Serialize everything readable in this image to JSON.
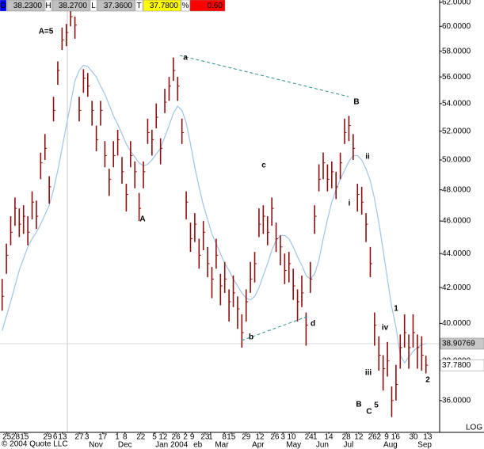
{
  "chart_data": {
    "type": "ohlc",
    "log": true,
    "bar_color": "#8b1010",
    "ma_color": "#9ec3e6",
    "ylim": [
      34.47,
      62.2
    ],
    "yticks": [
      {
        "value": 62,
        "label": "62.0000"
      },
      {
        "value": 60,
        "label": "60.0000"
      },
      {
        "value": 58,
        "label": "58.0000"
      },
      {
        "value": 56,
        "label": "56.0000"
      },
      {
        "value": 54,
        "label": "54.0000"
      },
      {
        "value": 52,
        "label": "52.0000"
      },
      {
        "value": 50,
        "label": "50.0000"
      },
      {
        "value": 48,
        "label": "48.0000"
      },
      {
        "value": 46,
        "label": "46.0000"
      },
      {
        "value": 44,
        "label": "44.0000"
      },
      {
        "value": 42,
        "label": "42.0000"
      },
      {
        "value": 40,
        "label": "40.0000"
      },
      {
        "value": 38,
        "label": "38.0000"
      },
      {
        "value": 36,
        "label": "36.0000"
      }
    ],
    "xlim": [
      -0.5,
      102.2
    ],
    "xticks": [
      {
        "value": 1.1,
        "label": "25"
      },
      {
        "value": 3.1,
        "label": "28"
      },
      {
        "value": 5.2,
        "label": "15"
      },
      {
        "value": 10.6,
        "label": "29"
      },
      {
        "value": 12.4,
        "label": "6"
      },
      {
        "value": 14.1,
        "label": "13"
      },
      {
        "value": 18,
        "label": "27"
      },
      {
        "value": 19.8,
        "label": "3"
      },
      {
        "value": 23.5,
        "label": "17"
      },
      {
        "value": 26.9,
        "label": "1"
      },
      {
        "value": 28.7,
        "label": "8"
      },
      {
        "value": 32.4,
        "label": "22"
      },
      {
        "value": 35.6,
        "label": "5"
      },
      {
        "value": 37.6,
        "label": "12"
      },
      {
        "value": 40.6,
        "label": "26"
      },
      {
        "value": 42.8,
        "label": "2"
      },
      {
        "value": 44.4,
        "label": "9"
      },
      {
        "value": 47.4,
        "label": "23"
      },
      {
        "value": 48.7,
        "label": "1"
      },
      {
        "value": 51.9,
        "label": "8"
      },
      {
        "value": 53.5,
        "label": "15"
      },
      {
        "value": 57,
        "label": "29"
      },
      {
        "value": 60.2,
        "label": "12"
      },
      {
        "value": 63.7,
        "label": "26"
      },
      {
        "value": 65.6,
        "label": "3"
      },
      {
        "value": 67.6,
        "label": "10"
      },
      {
        "value": 71.7,
        "label": "24"
      },
      {
        "value": 73.1,
        "label": "1"
      },
      {
        "value": 76.3,
        "label": "14"
      },
      {
        "value": 80.4,
        "label": "28"
      },
      {
        "value": 83.3,
        "label": "12"
      },
      {
        "value": 86.5,
        "label": "26"
      },
      {
        "value": 88,
        "label": "2"
      },
      {
        "value": 89.8,
        "label": "9"
      },
      {
        "value": 91.9,
        "label": "16"
      },
      {
        "value": 96.1,
        "label": "30"
      },
      {
        "value": 99.4,
        "label": "13"
      }
    ],
    "xmonths": [
      {
        "value": 21.9,
        "label": "Nov"
      },
      {
        "value": 28.7,
        "label": "Dec"
      },
      {
        "value": 39.6,
        "label": "Jan 2004"
      },
      {
        "value": 45.7,
        "label": "eb"
      },
      {
        "value": 51.3,
        "label": "Mar"
      },
      {
        "value": 59.8,
        "label": "Apr"
      },
      {
        "value": 68.1,
        "label": "May"
      },
      {
        "value": 74.8,
        "label": "Jun"
      },
      {
        "value": 80.9,
        "label": "Jul"
      },
      {
        "value": 90.7,
        "label": "Aug"
      },
      {
        "value": 98.7,
        "label": "Sep"
      }
    ],
    "high": [
      42.5,
      44.6,
      46.3,
      47.5,
      46.8,
      47,
      46.3,
      47.9,
      47.3,
      50.5,
      51.8,
      48.9,
      54.5,
      57.2,
      59.9,
      60.2,
      61.8,
      60.8,
      54.5,
      56.6,
      56.3,
      54.2,
      52.4,
      54.2,
      51.3,
      49.4,
      51.3,
      52.1,
      50.2,
      48.4,
      51.3,
      49.9,
      47.8,
      49.9,
      52.9,
      52.1,
      54,
      51.5,
      55.1,
      56,
      57.5,
      56,
      52.9,
      47.9,
      45.9,
      46.5,
      44.9,
      46,
      44.4,
      43.2,
      44.9,
      42.8,
      43.5,
      41.9,
      42.7,
      41.5,
      40.5,
      41.9,
      43.5,
      44.1,
      46.8,
      47,
      46.3,
      47.5,
      45.9,
      45.1,
      44,
      44.1,
      43.1,
      41.9,
      42.7,
      40.6,
      43.5,
      47,
      49.7,
      50.5,
      49.7,
      49.9,
      49.2,
      50.5,
      52.9,
      53.1,
      51.8,
      48.4,
      48.2,
      46.5,
      44.4,
      40.6,
      39.3,
      38.3,
      39,
      36.7,
      37.8,
      39.4,
      40.5,
      39.4,
      40.5,
      39.4,
      39.3,
      38.27
    ],
    "low": [
      40.7,
      42.8,
      44.5,
      45.7,
      45,
      45.2,
      44.5,
      46.1,
      45.5,
      48.7,
      50,
      47.1,
      52.7,
      55.4,
      58.1,
      58.4,
      60,
      59,
      52.7,
      54.8,
      54.5,
      52.4,
      50.6,
      52.4,
      49.5,
      47.6,
      49.5,
      50.3,
      48.4,
      46.6,
      49.5,
      48.1,
      46,
      48.1,
      51.1,
      50.3,
      52.2,
      49.7,
      53.3,
      54.2,
      55.7,
      54.2,
      51.1,
      46.1,
      44.1,
      44.7,
      43.1,
      44.2,
      42.6,
      41.4,
      43.1,
      41,
      41.7,
      40.1,
      40.9,
      39.7,
      38.7,
      40.1,
      41.7,
      42.3,
      45,
      45.2,
      44.5,
      45.7,
      44.1,
      43.3,
      42.2,
      42.3,
      41.3,
      40.1,
      40.9,
      38.8,
      41.7,
      45.2,
      47.9,
      48.7,
      47.9,
      48.1,
      47.4,
      48.7,
      51.1,
      51.3,
      50,
      46.6,
      46.4,
      44.7,
      42.6,
      38.8,
      37.5,
      36.5,
      37.2,
      35.2,
      36,
      37.6,
      38.7,
      37.6,
      38.7,
      37.6,
      37.5,
      37.36
    ],
    "close": [
      41.5,
      43.9,
      45.3,
      46.8,
      45.8,
      46.3,
      45.3,
      47.2,
      46.3,
      49.8,
      50.8,
      48.2,
      53.5,
      56.5,
      58.9,
      59.5,
      60.8,
      60.1,
      53.5,
      55.9,
      55.3,
      53.5,
      51.4,
      53.5,
      50.3,
      48.7,
      50.3,
      51.4,
      49.2,
      47.7,
      50.3,
      49.2,
      46.8,
      49.2,
      51.9,
      51.4,
      53,
      50.8,
      54.1,
      55.3,
      56.5,
      55.3,
      51.9,
      47.2,
      44.9,
      45.8,
      43.9,
      45.3,
      43.4,
      42.5,
      43.9,
      42.1,
      42.5,
      41.2,
      41.7,
      40.8,
      39.5,
      41.2,
      42.5,
      43.4,
      45.8,
      46.3,
      45.3,
      46.8,
      44.9,
      44.4,
      43,
      43.4,
      42.1,
      41.2,
      41.7,
      39.9,
      42.5,
      46.3,
      48.7,
      49.8,
      48.7,
      49.2,
      48.2,
      49.8,
      51.9,
      52.4,
      50.8,
      47.7,
      47.2,
      45.8,
      43.4,
      39.9,
      38.3,
      37.6,
      38,
      36,
      36.8,
      38.7,
      39.5,
      38.7,
      39.5,
      38.7,
      38.3,
      37.78
    ],
    "ma": [
      39.6,
      40.4,
      41.2,
      42.1,
      43,
      43.7,
      44.4,
      44.9,
      45.3,
      45.8,
      46.4,
      47,
      48,
      49.3,
      50.8,
      52.4,
      54,
      55.7,
      56.5,
      56.9,
      56.8,
      56.4,
      56,
      55.3,
      54.7,
      53.9,
      53.1,
      52.5,
      51.8,
      51.1,
      50.6,
      50.2,
      49.8,
      49.6,
      49.7,
      50,
      50.4,
      50.8,
      51.6,
      52.4,
      53.3,
      53.8,
      53.5,
      52.6,
      51.1,
      49.5,
      48.2,
      47,
      46.1,
      45.2,
      44.6,
      44,
      43.4,
      43,
      42.5,
      42.1,
      41.7,
      41.4,
      41.3,
      41.5,
      42,
      42.7,
      43.4,
      44.2,
      44.8,
      45.1,
      45.1,
      44.9,
      44.4,
      43.8,
      43.3,
      42.7,
      42.5,
      42.8,
      43.6,
      44.9,
      46.1,
      47.2,
      48,
      48.7,
      49.3,
      49.9,
      50.3,
      50.3,
      50,
      49.4,
      48.6,
      47.4,
      45.9,
      44.2,
      42.5,
      40.9,
      39.8,
      38.3,
      37.9,
      38.2,
      38.5,
      38.7,
      38.85,
      38.90769
    ],
    "price_flags": [
      38.90769,
      {
        "value": 37.78,
        "label": "37.7800"
      }
    ],
    "price_flag_colors": [
      "#c8c8c8",
      "#ffffff"
    ],
    "price_flag_text_colors": [
      "#ffffff",
      "#000000"
    ],
    "scale_label": "LOG",
    "copyright": "© 2004 Quote LLC",
    "quote": [
      {
        "key": "O",
        "key_color": "#0000ff",
        "key_text_color": "#ffffff",
        "value": "38.2300",
        "color": "#c0c0c0"
      },
      {
        "key": "H",
        "key_color": "#ffffff",
        "key_text_color": "#000000",
        "value": "38.2700",
        "color": "#c0c0c0"
      },
      {
        "key": "L",
        "key_color": "#ffffff",
        "key_text_color": "#000000",
        "value": "37.3600",
        "color": "#c0c0c0"
      },
      {
        "key": "T",
        "key_color": "#ffffff",
        "key_text_color": "#000000",
        "value": "37.7800",
        "color": "#ffff00"
      },
      {
        "key": "%",
        "key_color": "#ffffff",
        "key_text_color": "#000000",
        "value": "0.60",
        "color": "#ff0000"
      }
    ],
    "annotations": [
      {
        "text": "A=5",
        "color": "#ff00ff"
      },
      {
        "text": "A",
        "color": "#0000aa"
      },
      {
        "text": "a",
        "color": "#0000aa"
      },
      {
        "text": "B",
        "color": "#0000aa"
      },
      {
        "text": "c",
        "color": "#0000aa"
      },
      {
        "text": "b",
        "color": "#0000aa"
      },
      {
        "text": "d",
        "color": "#0000aa"
      },
      {
        "text": "i",
        "color": "#0000aa"
      },
      {
        "text": "ii",
        "color": "#0000aa"
      },
      {
        "text": "iii",
        "color": "#0000aa"
      },
      {
        "text": "iv",
        "color": "#0000aa"
      },
      {
        "text": "1",
        "color": "#0000aa"
      },
      {
        "text": "2",
        "color": "#0000aa"
      },
      {
        "text": "5",
        "color": "#0000aa"
      },
      {
        "text": "B",
        "color": "#ff00ff"
      },
      {
        "text": "C",
        "color": "#0000aa"
      }
    ]
  }
}
